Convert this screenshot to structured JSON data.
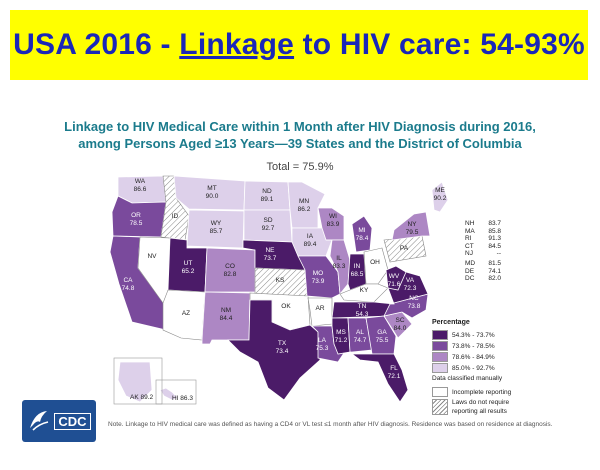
{
  "banner": {
    "prefix": "USA 2016 - ",
    "underlined": "Linkage",
    "suffix": " to HIV care: 54-93%"
  },
  "map": {
    "title_line1": "Linkage to HIV Medical Care within 1 Month after HIV Diagnosis during 2016,",
    "title_line2": "among Persons Aged ≥13 Years—39 States and the District of Columbia",
    "total": "Total = 75.9%",
    "states": [
      {
        "abbr": "WA",
        "value": "86.6",
        "category": 4
      },
      {
        "abbr": "OR",
        "value": "78.5",
        "category": 2
      },
      {
        "abbr": "CA",
        "value": "74.8",
        "category": 2
      },
      {
        "abbr": "NV",
        "value": "",
        "category": 0
      },
      {
        "abbr": "ID",
        "value": "",
        "category": 5
      },
      {
        "abbr": "MT",
        "value": "90.0",
        "category": 4
      },
      {
        "abbr": "WY",
        "value": "85.7",
        "category": 4
      },
      {
        "abbr": "UT",
        "value": "65.2",
        "category": 1
      },
      {
        "abbr": "AZ",
        "value": "",
        "category": 0
      },
      {
        "abbr": "CO",
        "value": "82.8",
        "category": 3
      },
      {
        "abbr": "NM",
        "value": "84.4",
        "category": 3
      },
      {
        "abbr": "ND",
        "value": "89.1",
        "category": 4
      },
      {
        "abbr": "SD",
        "value": "92.7",
        "category": 4
      },
      {
        "abbr": "NE",
        "value": "73.7",
        "category": 1
      },
      {
        "abbr": "KS",
        "value": "",
        "category": 5
      },
      {
        "abbr": "OK",
        "value": "",
        "category": 0
      },
      {
        "abbr": "TX",
        "value": "73.4",
        "category": 1
      },
      {
        "abbr": "MN",
        "value": "86.2",
        "category": 4
      },
      {
        "abbr": "IA",
        "value": "89.4",
        "category": 4
      },
      {
        "abbr": "MO",
        "value": "73.9",
        "category": 2
      },
      {
        "abbr": "AR",
        "value": "",
        "category": 0
      },
      {
        "abbr": "LA",
        "value": "75.3",
        "category": 2
      },
      {
        "abbr": "WI",
        "value": "83.9",
        "category": 3
      },
      {
        "abbr": "IL",
        "value": "83.3",
        "category": 3
      },
      {
        "abbr": "MI",
        "value": "78.4",
        "category": 2
      },
      {
        "abbr": "IN",
        "value": "68.5",
        "category": 1
      },
      {
        "abbr": "OH",
        "value": "",
        "category": 0
      },
      {
        "abbr": "KY",
        "value": "",
        "category": 0
      },
      {
        "abbr": "TN",
        "value": "54.3",
        "category": 1
      },
      {
        "abbr": "MS",
        "value": "71.2",
        "category": 1
      },
      {
        "abbr": "AL",
        "value": "74.7",
        "category": 2
      },
      {
        "abbr": "GA",
        "value": "75.5",
        "category": 2
      },
      {
        "abbr": "FL",
        "value": "72.1",
        "category": 1
      },
      {
        "abbr": "SC",
        "value": "84.0",
        "category": 3
      },
      {
        "abbr": "NC",
        "value": "73.8",
        "category": 2
      },
      {
        "abbr": "VA",
        "value": "72.3",
        "category": 1
      },
      {
        "abbr": "WV",
        "value": "71.6",
        "category": 1
      },
      {
        "abbr": "PA",
        "value": "",
        "category": 5
      },
      {
        "abbr": "NY",
        "value": "79.5",
        "category": 3
      },
      {
        "abbr": "ME",
        "value": "90.2",
        "category": 4
      },
      {
        "abbr": "AK",
        "value": "89.2",
        "category": 4
      },
      {
        "abbr": "HI",
        "value": "86.3",
        "category": 4
      }
    ],
    "right_list": [
      {
        "abbr": "NH",
        "value": "83.7"
      },
      {
        "abbr": "MA",
        "value": "85.8"
      },
      {
        "abbr": "RI",
        "value": "91.3"
      },
      {
        "abbr": "CT",
        "value": "84.5"
      },
      {
        "abbr": "NJ",
        "value": "--"
      },
      {
        "abbr": "MD",
        "value": "81.5"
      },
      {
        "abbr": "DE",
        "value": "74.1"
      },
      {
        "abbr": "DC",
        "value": "82.0"
      }
    ],
    "colors": {
      "c1": "#4b1b68",
      "c2": "#7a4a9c",
      "c3": "#ad87c4",
      "c4": "#ddd0ea",
      "incomplete": "#ffffff",
      "border": "#ffffff"
    }
  },
  "legend": {
    "title": "Percentage",
    "items": [
      {
        "label": "54.3% - 73.7%",
        "color": "#4b1b68"
      },
      {
        "label": "73.8% - 78.5%",
        "color": "#7a4a9c"
      },
      {
        "label": "78.6% - 84.9%",
        "color": "#ad87c4"
      },
      {
        "label": "85.0% - 92.7%",
        "color": "#ddd0ea"
      }
    ],
    "manual_note": "Data classified manually",
    "incomplete": "Incomplete reporting",
    "laws_line1": "Laws do not require",
    "laws_line2": "reporting all results"
  },
  "footer": {
    "logo_text": "CDC",
    "note": "Note. Linkage to HIV medical care was defined as having a CD4 or VL test ≤1 month after HIV diagnosis. Residence was based on residence at diagnosis."
  }
}
